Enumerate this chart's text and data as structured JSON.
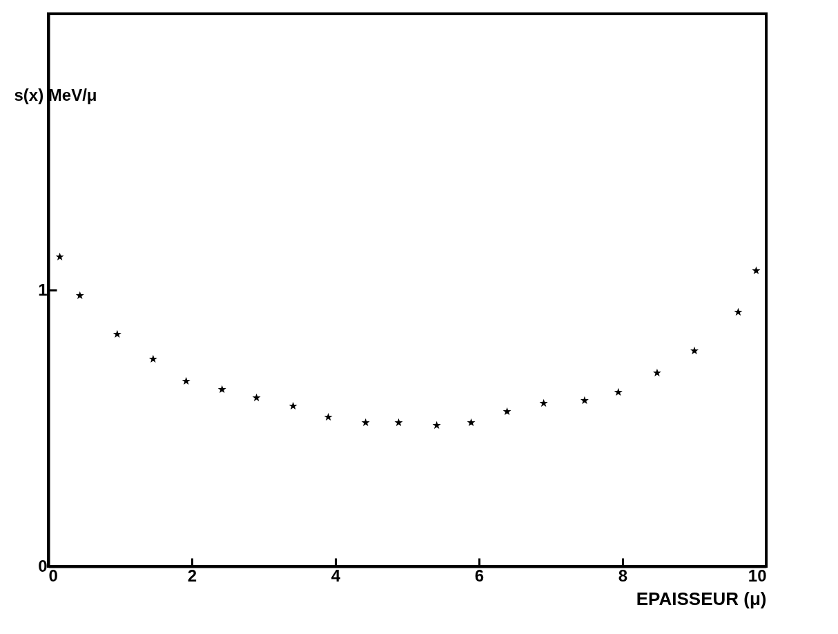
{
  "chart_data": {
    "type": "scatter",
    "xlabel": "EPAISSEUR (μ)",
    "ylabel": "s(x) MeV/μ",
    "x": [
      0.16,
      0.44,
      0.96,
      1.46,
      1.92,
      2.42,
      2.9,
      3.41,
      3.9,
      4.42,
      4.88,
      5.41,
      5.89,
      6.39,
      6.9,
      7.47,
      7.94,
      8.48,
      9.0,
      9.61,
      9.86
    ],
    "series": [
      {
        "color": "#000000",
        "values": [
          1.12,
          0.98,
          0.84,
          0.75,
          0.67,
          0.64,
          0.61,
          0.58,
          0.54,
          0.52,
          0.52,
          0.51,
          0.52,
          0.56,
          0.59,
          0.6,
          0.63,
          0.7,
          0.78,
          0.92,
          1.07
        ]
      }
    ],
    "xlim": [
      0,
      10
    ],
    "xticks": [
      0,
      2,
      4,
      6,
      8,
      10
    ],
    "ylim": [
      0,
      2
    ],
    "yticks": [
      0,
      1
    ],
    "marker": "star",
    "grid": false
  }
}
